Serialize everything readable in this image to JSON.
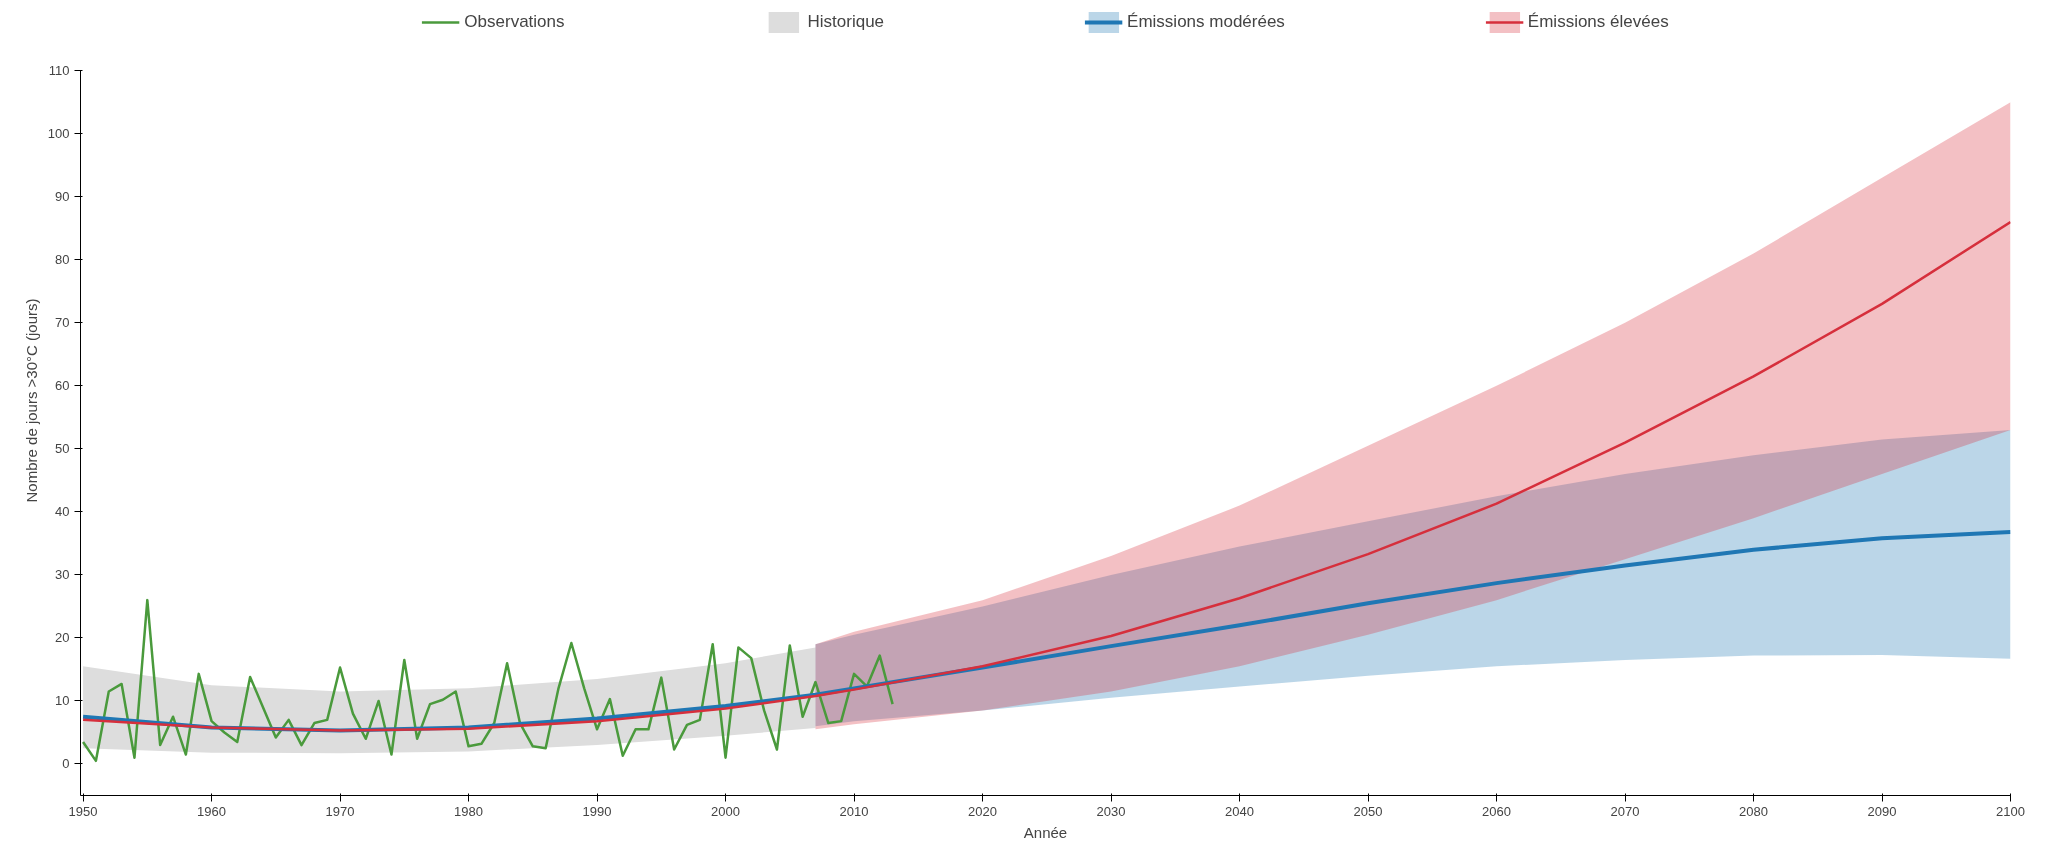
{
  "chart_data": {
    "type": "line",
    "xlabel": "Année",
    "ylabel": "Nombre de jours >30°C (jours)",
    "xlim": [
      1949.8,
      2100
    ],
    "ylim": [
      -5,
      110
    ],
    "xticks": [
      1950,
      1960,
      1970,
      1980,
      1990,
      2000,
      2010,
      2020,
      2030,
      2040,
      2050,
      2060,
      2070,
      2080,
      2090,
      2100
    ],
    "yticks": [
      0,
      10,
      20,
      30,
      40,
      50,
      60,
      70,
      80,
      90,
      100,
      110
    ],
    "grid": false,
    "legend": "top",
    "series": [
      {
        "name": "Observations",
        "color": "#4a9a3c",
        "x": [
          1950,
          1951,
          1952,
          1953,
          1954,
          1955,
          1956,
          1957,
          1958,
          1959,
          1960,
          1961,
          1962,
          1963,
          1964,
          1965,
          1966,
          1967,
          1968,
          1969,
          1970,
          1971,
          1972,
          1973,
          1974,
          1975,
          1976,
          1977,
          1978,
          1979,
          1980,
          1981,
          1982,
          1983,
          1984,
          1985,
          1986,
          1987,
          1988,
          1989,
          1990,
          1991,
          1992,
          1993,
          1994,
          1995,
          1996,
          1997,
          1998,
          1999,
          2000,
          2001,
          2002,
          2003,
          2004,
          2005,
          2006,
          2007,
          2008,
          2009,
          2010,
          2011,
          2012,
          2013
        ],
        "values": [
          3.5,
          0.5,
          11.5,
          12.7,
          1,
          26,
          3,
          7.5,
          1.5,
          14.3,
          6.8,
          5,
          3.5,
          13.8,
          9,
          4.2,
          7,
          3,
          6.5,
          7,
          15.3,
          8,
          4,
          10,
          1.5,
          16.5,
          4,
          9.5,
          10.2,
          11.5,
          2.8,
          3.2,
          6.5,
          16,
          6.5,
          2.8,
          2.5,
          12,
          19.2,
          12,
          5.5,
          10.3,
          1.3,
          5.5,
          5.5,
          13.7,
          2.3,
          6.2,
          7,
          19,
          1,
          18.5,
          16.8,
          8.5,
          2.3,
          18.8,
          7.5,
          13,
          6.5,
          6.8,
          14.3,
          12.3,
          17.2,
          9.5
        ]
      },
      {
        "name": "Historique",
        "type": "area",
        "color": "#dddddd",
        "x": [
          1950,
          1960,
          1970,
          1980,
          1990,
          2000,
          2007
        ],
        "values": [
          null,
          null,
          null,
          null,
          null,
          null,
          null
        ],
        "lower": [
          2.5,
          1.8,
          1.7,
          2,
          3,
          4.5,
          5.7
        ],
        "upper": [
          15.5,
          12.5,
          11.5,
          12,
          13.5,
          16,
          18.5
        ]
      },
      {
        "name": "Émissions modérées",
        "color": "#1f77b4",
        "x": [
          1950,
          1960,
          1970,
          1980,
          1990,
          2000,
          2007,
          2010,
          2020,
          2030,
          2040,
          2050,
          2060,
          2070,
          2080,
          2090,
          2100
        ],
        "values": [
          7.5,
          5.8,
          5.3,
          5.8,
          7.2,
          9.2,
          11,
          12,
          15.3,
          18.7,
          22,
          25.5,
          28.7,
          31.5,
          34,
          35.8,
          36.8
        ],
        "lower": [
          null,
          null,
          null,
          null,
          null,
          null,
          6,
          6.8,
          8.5,
          10.5,
          12.3,
          14,
          15.5,
          16.5,
          17.2,
          17.3,
          16.7
        ],
        "upper": [
          null,
          null,
          null,
          null,
          null,
          null,
          19,
          20.5,
          25,
          30,
          34.5,
          38.5,
          42.5,
          46,
          49,
          51.5,
          53
        ]
      },
      {
        "name": "Émissions élevées",
        "color": "#d62f3c",
        "x": [
          1950,
          1960,
          1970,
          1980,
          1990,
          2000,
          2007,
          2010,
          2020,
          2030,
          2040,
          2050,
          2060,
          2070,
          2080,
          2090,
          2100
        ],
        "values": [
          7,
          5.8,
          5.3,
          5.6,
          6.8,
          8.8,
          10.8,
          11.8,
          15.5,
          20.3,
          26.3,
          33.3,
          41.3,
          51,
          61.5,
          73,
          86
        ],
        "lower": [
          null,
          null,
          null,
          null,
          null,
          null,
          5.5,
          6.3,
          8.5,
          11.5,
          15.5,
          20.5,
          26,
          32.5,
          39,
          46,
          53
        ],
        "upper": [
          null,
          null,
          null,
          null,
          null,
          null,
          19,
          21,
          26,
          33,
          41,
          50.5,
          60,
          70,
          81,
          93,
          105
        ]
      }
    ]
  }
}
